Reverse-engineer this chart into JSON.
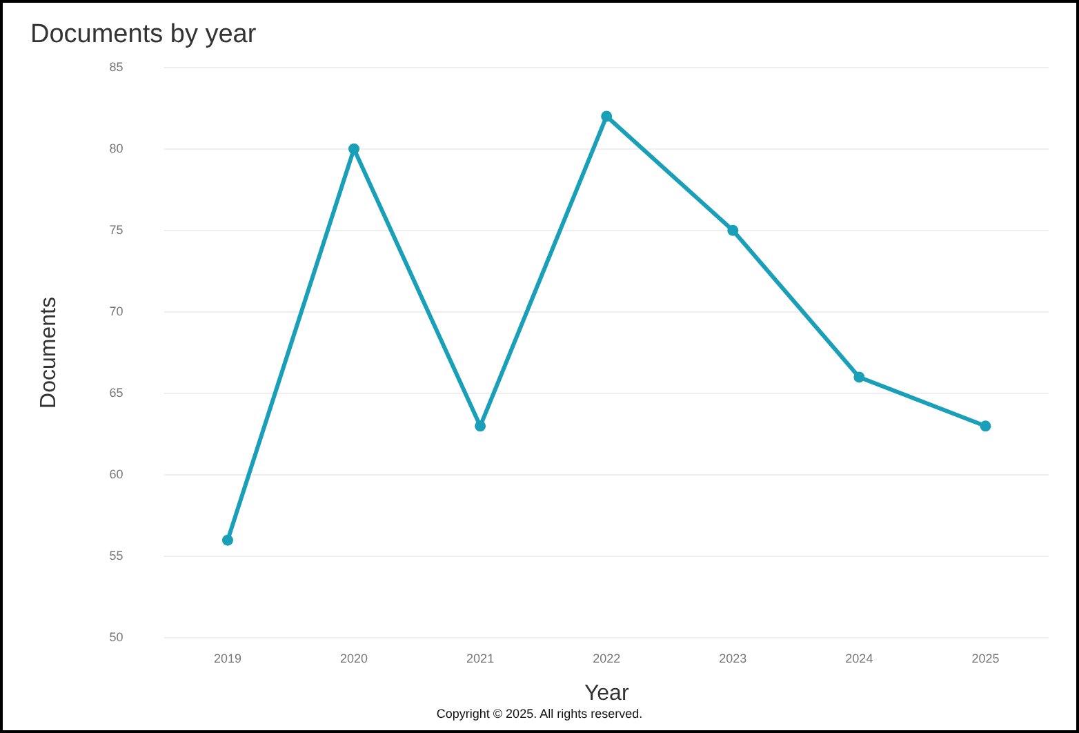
{
  "chart_data": {
    "type": "line",
    "title": "Documents by year",
    "xlabel": "Year",
    "ylabel": "Documents",
    "categories": [
      "2019",
      "2020",
      "2021",
      "2022",
      "2023",
      "2024",
      "2025"
    ],
    "series": [
      {
        "color": "#1a9fb8",
        "values": [
          56,
          80,
          63,
          82,
          75,
          66,
          63
        ]
      }
    ],
    "ylim": [
      50,
      85
    ],
    "yticks": [
      50,
      55,
      60,
      65,
      70,
      75,
      80,
      85
    ],
    "grid": "y",
    "legend": false,
    "marker": "circle",
    "line_style": "solid",
    "annotations": [
      "Copyright © 2025. All rights reserved."
    ]
  }
}
